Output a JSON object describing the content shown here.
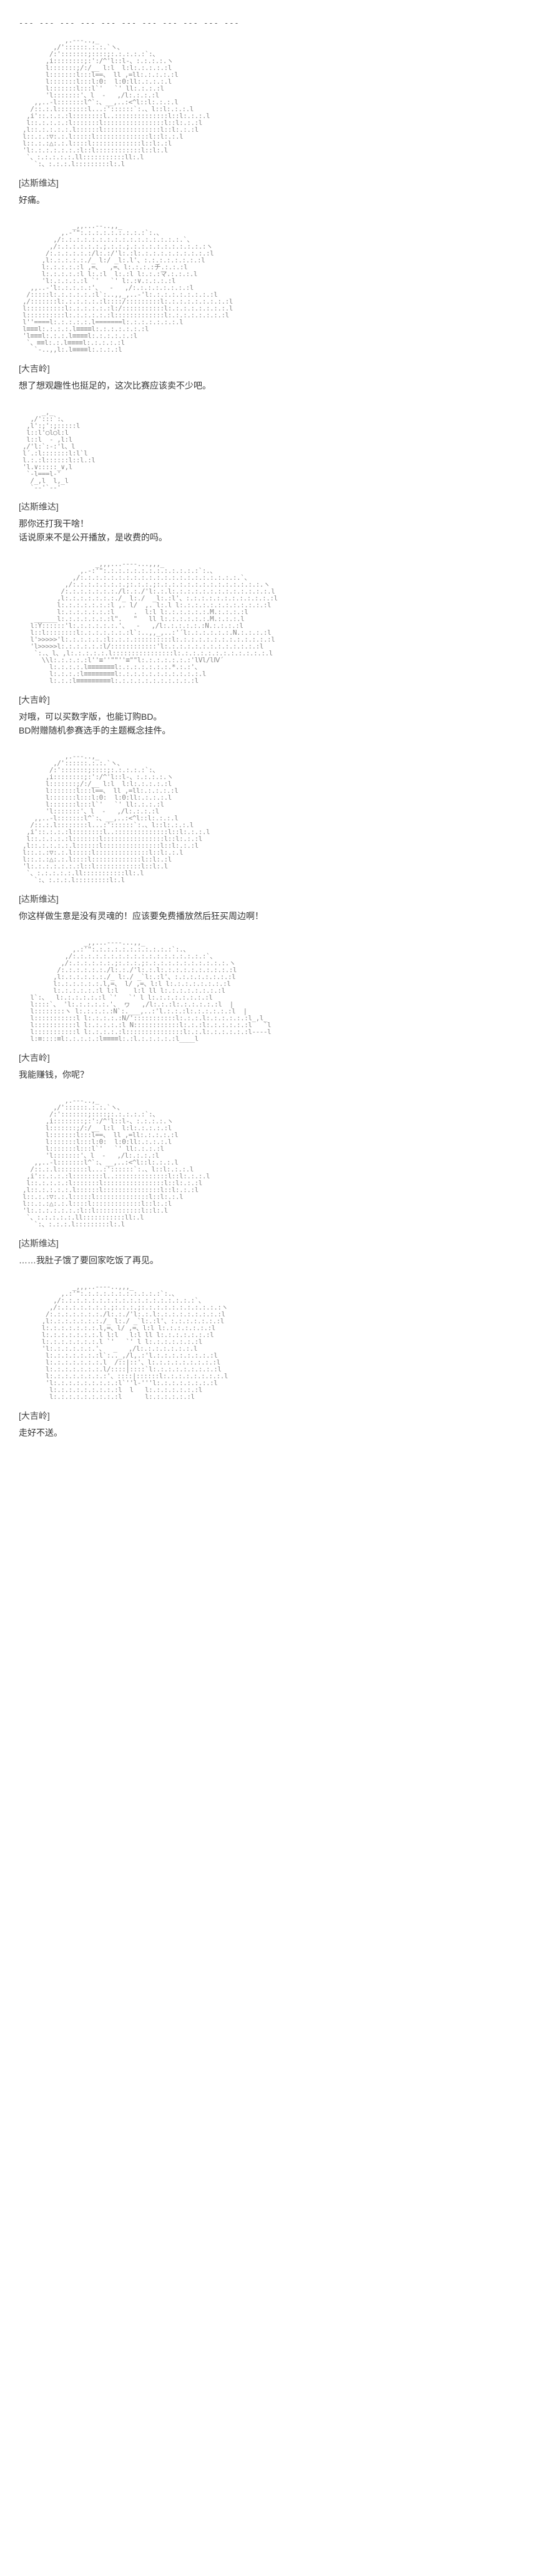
{
  "divider": "--- --- --- --- --- --- --- --- --- --- ---",
  "entries": [
    {
      "speaker": "[达斯维达]",
      "dialogue": "好痛。",
      "art_type": "char1"
    },
    {
      "speaker": "[大吉岭]",
      "dialogue": "想了想观趣性也挺足的，这次比赛应该卖不少吧。",
      "art_type": "char2"
    },
    {
      "speaker": "[达斯维达]",
      "dialogue": "那你还打我干啥！\n话说原来不是公开播放，是收费的吗。",
      "art_type": "char1_small"
    },
    {
      "speaker": "[大吉岭]",
      "dialogue": "对哦，可以买数字版，也能订购BD。\nBD附赠随机参赛选手的主题概念挂件。",
      "art_type": "char2_wide"
    },
    {
      "speaker": "[达斯维达]",
      "dialogue": "你这样做生意是没有灵魂的！应该要免费播放然后狂买周边啊！",
      "art_type": "char1"
    },
    {
      "speaker": "[大吉岭]",
      "dialogue": "我能赚钱，你呢？",
      "art_type": "char2_smile"
    },
    {
      "speaker": "[达斯维达]",
      "dialogue": "……我肚子饿了要回家吃饭了再见。",
      "art_type": "char1"
    },
    {
      "speaker": "[大吉岭]",
      "dialogue": "走好不送。",
      "art_type": "char2_think"
    }
  ],
  "ascii": {
    "char1": "            ,.---..,_\n         ,/'::::::.:.:.`ヽ、\n        /:':::::::;::::;:.:.:.:.:`:、\n       ,i::::::::;:':/^'l::l-、:.:.:.:.ヽ\n       l:::::::;/:/__ l:l  l:l:.:.:.:.:l\n       l:::::::l:::l==、 ll ,=ll:.:.:.:.:l\n       l:::::::l:::l:0:  l:0:ll:.:.:.:.l\n       l:::::::l:::l`'   `' ll:.:.:.:l\n       'l:::::::'、l  -   ,/l:.:.:.:l\n    ,,..-l:::::::l^`:、__,..:<^l::l:.:.:.l\n   /::.:.l::::::::l...:'::::::`:.、l::l:.:.:.l\n  ,i'::.:.:.:l::::::::l..::::::::::::::l::l:.:.:.l\n  l::.:.:.:.:l:::::::l::::::::::::::::l::l:.:.:l\n ,l::.:.:.:.:.l::::::l:::::::::::::::l::l:.:.:l\n l::.:.:▽:.:.l:::::l::::::::::::::l::l:.:.l\n l::.:.:△:.:.l::::l:::::::::::::l::l:.:l\n 'l:.:.:.:.:.:.:l::l::::::::::::l::l:.l\n  `、:.:.:.:.:.ll:::::::::::ll:.l\n    `:、:.:.:.l:::::::::l:.l",
    "char2": "              _,,...--..,,_\n           ,.-'\":.:.:.:.:.:.:.:.:`:.、\n         ,/:.:.:.:.:.:.:.:.:.:.:.:.:.:.:.:.`、\n        ,/:.:.:.:.:.:.;.:.:.;.:.:.:.:.:.:.:.:.:.:ヽ\n       /:.:.:.:.:.:/l:.:/'l:.:l:.:.:.:.:.:.:.:.:.:l\n      ,l:.:.:.:.:./_ l:/ _l:.l'、:.:.:.:.:.:.:.:l\n      l:.:.:.:.:l ,=、  ,=、l:.:.:.:チ.:.:.:l\n      l:.:.:.:.:l l:.:l  l:.:l l:.:.:マ.:.:.:.l\n      'l:.:.:.:.:l `'   `' l:.:∨.:.:.:.:l\n   ,,..-'l:.:.:.:.:'、  -   ,/:.:.:.:.:.:.:.:l\n  /:::::l:.:.:.:.:.:l`:..,,_,..-'l:.:.:.:.:.:.:.:.:l\n ,/:::::::l:.:.:.:.:.:l::::/:::::::::l:.:.:.:.:.:.:.:.:l\n l::::::::::l:.:.:.:.:.:l:/:::::::::::l:.:.:.:.:.:.:.:.l\n l::::::::::l:.:.:.:.:.:l:::::::::::::l:.:.:.:.:.:.:.:l\n l''====l:.:.:.:.:.l=======l:.:.:.:.:.:.:.l\n l≡≡≡l:.:.:.:.l≡≡≡≡l:.:.:.:.:.:.:l\n 'l≡≡≡l:.:.:.l≡≡≡≡l:.:.:.:.:.:l\n  `、≡≡l:.:.l≡≡≡≡l:.:.:.:.:l\n    `-..,,l:.l≡≡≡≡l:.:.:.:l",
    "char1_small": "      _,_\n   ,/':::`:、\n  ,l':;':;:::::l\n  l::l'○l○l:l\n  l::l  - ,l:l\n ,/'l:`:-:'l、l\n l´.:l:::::::l:l`l\n l.:.:l::::::l::l.:l\n 'l.∨:::::_∨,l\n  `-l===l-'\n   /_,l  l,_l\n   `--'`--'",
    "char2_wide": "                    _,,,...----...,,,_\n                ,.-:'\":.:.:.:.:.:.:.:.:.:.:.:.:`:.、\n              ,/:.:.:.:.:.:.:.:.:.:.:.:.:.:.:.:.:.:.:.:.:.`、\n            ,/:.:.:.:.:.:.:.;:.:.:.;:.:.:.:.:.:.:.:.:.:.:.:.:.:.ヽ\n           /:.:.:.:.:.:.:./l:.:./'l:.:.l:.:.:.:.:.:.:.:.:.:.:.:.:.l\n          ,l:.:.:.:.:.:.:./_ l:./  _l:.:l'、:.:.:.:.:.:.:.:.:.:.:.:l\n          l:.:.:.:.:.:.:l ,. l/  ,. l:.l l:.:.:.:.:.:.:.:.:.:.:.:l\n          l:.:.:.:.:.:.:l     .  l:l l:.:.:.:.:.:.M.:.:.:.:l\n    ______l:.:.:.:.:.:.:l\".   \"   ll l:.:.:.:.:.:.M.:.:.:.l\n   l:Y::::::'l:.:.:.:.:.:.'、  -   ,/l:.:.:.:.:.:N.:.:.:.:l\n   l::l::::::::l:.:.:.:.:.:.:l`:..,,_,..:'´l:.:.:.:.:.:.N.:.:.:.:l\n   l'>>>>>'l:.:.:.:.:.:l:.:.:.::::::::::l:.:.:.:.:.:.:.:.:.:.:.:.:l\n   'l>>>>>l:.:.:.:.:.:l/::::::::::::'l:.:.:.:.:.:.:.:.:.:.:.:.:l\n    `:.、l、,l:.:.:.:.:.l::::::::::::::::l:.:.:.:.:.:.:.:.:.:.:.:.l\n      \\\\l:.:.:.:.:l''≡''\"\"''≡\"\"l:.:.:.:.:.:.:'lVl/lⅣ´\n        l:.:.:.:.l≡≡≡≡≡≡≡l:.:.:.:.:.:.:.*.:.:'、\n        l:.:.:.:l≡≡≡≡≡≡≡≡l:.:.:.:.:.:.:.:.:.:.:.l\n        l:.:.:l≡≡≡≡≡≡≡≡≡l:.:.:.:.:.:.:.:.:.:.:l",
    "char2_smile": "                 _,,...----...,,_\n              ,.:'\":.:.:.:.:.:.:.:.:.:.:`:.、\n            ,/:.:.:.:.:.:.:.:.:.:.:.:.:.:.:.:.:.:`、\n           ,/:.:.:.:.:.:.;:.:.:.;:.:.:.:.:.:.:.:.:.:.:.ヽ\n          /:.:.:.:.:.:./l:.:./'l:.:.l:.:.:.:.:.:.:.:.:.:l\n         ,l:.:.:.:.:.:./_ l:./ _`l:.:l'、:.:.:.:.:.:.:.:l\n         l:.:.:.:.:.:.l,=、 l/ ,=、l:l l:.:.:.:.:.:.:.:l\n         l:.:.:.:.:.:l l:l    l:l ll l:.:.:.:.:.:.:.:l\n   l`:、  l:.:.:.:.:.:l `'   `' l l:.:.:.:.:.:.:.:l\n   l::::`、 'l:.:.:.:.:.'、 ヮ   ,/l:.:.:l:.:.:.:.:.:l  |\n   l::::::::ヽ l:.:.:.:.:N`:.___,..:'l.:.:.:l:.:.:.:.:.:l  |\n   l:::::::::::l l:.:.:.:.:N/':::::::::::l:.:.:.l:.:.:.:.:.:l_,l_\n   l:::::::::::l l:.:.:.:.:l N::::::::::::l:.:.:l:.:.:.:.:.:l   `l\n   l:::::::::::l l:.:.:.:.:l:::::::::::::::l:.:.l:.:.:.:.:.:l----l\n   l:≡::::≡l:.:.:.:.:l≡≡≡≡l:.:l.:.:.:.:.:l____l",
    "char2_think": "              _,,,..----..,,,_\n           ,.:'\":.:.:.:.:.:.:.:.:.:.:`:.、\n         ,/:.:.:.:.:.:.:.:.:.:.:.:.:.:.:.:.:.:`、\n        ,/:.:.:.:.:.:.:.;:.:.:.;:.:.:.:.:.:.:.:.:.:.:ヽ\n       /:.:.:.:.:.:.:./l:.:./'l:.:.l:.:.:.:.:.:.:.:.:l\n      ,l:.:.:.:.:.:.:./_ l:./ _`l:.:l'、:.:.:.:.:.:.:l\n      l:.:.:.:.:.:.:.l,=、l/ ,=、l:l l:.:.:.:.:.:.:l\n      l:.:.:.:.:.:.:.l l:l   l:l ll l:.:.:.:.:.:.:l\n      l:.:.:.:.:.:.:.l `'   `' l l:.:.:.:.:.:.:l\n      'l:.:.:.:.:.:.'、  _   ,/l:.:.:.:.:.:.:.l\n       l:.:.:.:.:.:.:l`:.._,/l,.:'l.:.:.:.:.:.:.:.:l\n       l:.:.:.:.:.:.:.l  /::|::'、l:.:.:.:.:.:.:.:.:l\n       l:.:.:.:.:.:.:.l/::::|::::`l:.:.:.:.:.:.:.:.:l\n       l:.:.:.:.:.:.:.:'、::::|::::::l:.:.:.:.:.:.:.:.l\n       'l:.:.:.:.:.:.:.:.:l`''l-'''l:.:.:.:.:.:.:.:l\n        l:.:.:.:.:.:.:.:.:l  l   l:.:.:.:.:.:.:l\n        l:.:.:.:.:.:.:.:.:l      l:.:.:.:.:.:l"
  }
}
